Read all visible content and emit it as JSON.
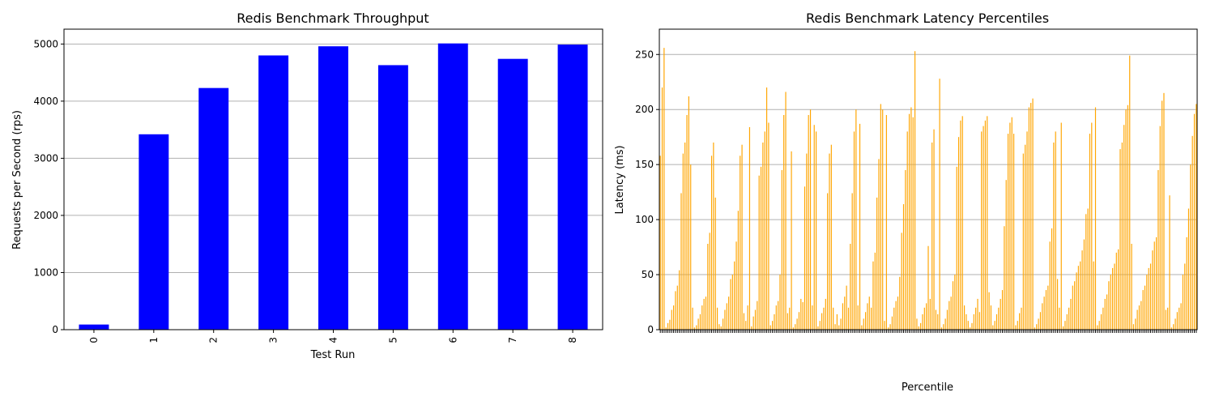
{
  "chart_data": [
    {
      "type": "bar",
      "title": "Redis Benchmark Throughput",
      "xlabel": "Test Run",
      "ylabel": "Requests per Second (rps)",
      "categories": [
        "0",
        "1",
        "2",
        "3",
        "4",
        "5",
        "6",
        "7",
        "8"
      ],
      "values": [
        90,
        3420,
        4230,
        4800,
        4960,
        4630,
        5010,
        4740,
        4990
      ],
      "ylim": [
        0,
        5260
      ],
      "yticks": [
        0,
        1000,
        2000,
        3000,
        4000,
        5000
      ],
      "color": "#0000ff",
      "grid": "y"
    },
    {
      "type": "bar",
      "title": "Redis Benchmark Latency Percentiles",
      "xlabel": "Percentile",
      "ylabel": "Latency (ms)",
      "ylim": [
        0,
        273
      ],
      "yticks": [
        0,
        50,
        100,
        150,
        200,
        250
      ],
      "color": "#ffa500",
      "grid": "y",
      "values": [
        158,
        220,
        256,
        2,
        6,
        9,
        18,
        22,
        35,
        40,
        54,
        124,
        160,
        170,
        195,
        212,
        150,
        20,
        2,
        4,
        10,
        14,
        22,
        28,
        30,
        78,
        88,
        158,
        170,
        120,
        20,
        5,
        3,
        10,
        18,
        24,
        30,
        46,
        50,
        62,
        80,
        108,
        158,
        168,
        15,
        8,
        22,
        184,
        3,
        12,
        18,
        26,
        140,
        148,
        170,
        180,
        220,
        188,
        4,
        8,
        14,
        22,
        26,
        50,
        145,
        195,
        216,
        15,
        20,
        162,
        2,
        5,
        10,
        16,
        28,
        25,
        130,
        160,
        195,
        200,
        22,
        186,
        180,
        3,
        8,
        15,
        20,
        28,
        124,
        160,
        168,
        20,
        5,
        14,
        4,
        10,
        24,
        30,
        40,
        20,
        78,
        124,
        180,
        200,
        22,
        187,
        4,
        10,
        16,
        24,
        30,
        20,
        62,
        70,
        120,
        155,
        205,
        200,
        8,
        195,
        2,
        5,
        12,
        20,
        26,
        30,
        48,
        88,
        114,
        145,
        180,
        196,
        202,
        193,
        253,
        10,
        3,
        6,
        14,
        20,
        24,
        76,
        28,
        170,
        182,
        18,
        14,
        228,
        2,
        5,
        10,
        18,
        26,
        30,
        44,
        50,
        148,
        175,
        190,
        194,
        22,
        14,
        8,
        2,
        6,
        14,
        20,
        28,
        16,
        180,
        185,
        190,
        194,
        34,
        22,
        4,
        8,
        14,
        20,
        28,
        36,
        94,
        136,
        178,
        188,
        193,
        178,
        4,
        8,
        15,
        20,
        160,
        168,
        180,
        202,
        206,
        210,
        2,
        5,
        10,
        16,
        24,
        30,
        36,
        40,
        80,
        92,
        170,
        180,
        46,
        20,
        188,
        3,
        8,
        14,
        20,
        28,
        40,
        44,
        52,
        58,
        62,
        72,
        82,
        105,
        110,
        178,
        188,
        62,
        202,
        4,
        8,
        14,
        20,
        28,
        32,
        44,
        50,
        56,
        60,
        70,
        73,
        164,
        170,
        186,
        200,
        204,
        249,
        78,
        5,
        10,
        18,
        22,
        26,
        36,
        40,
        50,
        56,
        60,
        72,
        80,
        84,
        145,
        185,
        208,
        215,
        18,
        20,
        122,
        2,
        5,
        10,
        16,
        20,
        24,
        50,
        60,
        84,
        110,
        150,
        176,
        196,
        205
      ]
    }
  ]
}
